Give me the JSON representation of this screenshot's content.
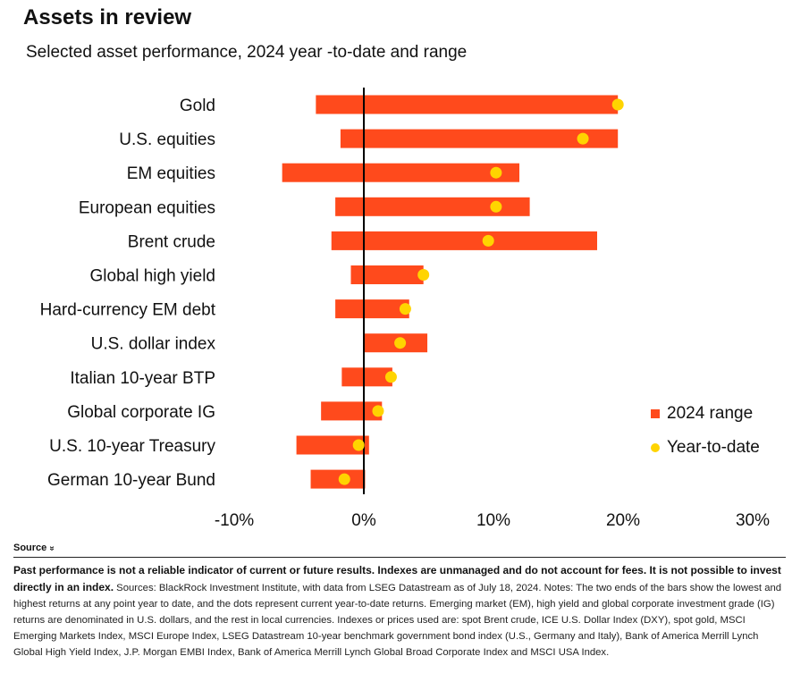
{
  "header": {
    "title": "Assets in review",
    "subtitle": "Selected asset performance, 2024 year  -to-date and range"
  },
  "legend": {
    "range_label": "2024 range",
    "ytd_label": "Year-to-date"
  },
  "colors": {
    "bar": "#ff4a1c",
    "dot": "#ffd400",
    "axis": "#000000"
  },
  "chart_data": {
    "type": "bar",
    "orientation": "horizontal",
    "title": "Assets in review",
    "subtitle": "Selected asset performance, 2024 year  -to-date and range",
    "xlim": [
      -10,
      30
    ],
    "xticks": [
      -10,
      0,
      10,
      20,
      30
    ],
    "xtick_labels": [
      "-10%",
      "0%",
      "10%",
      "20%",
      "30%"
    ],
    "grid": false,
    "legend_position": "right",
    "categories": [
      "Gold",
      "U.S. equities",
      "EM equities",
      "European equities",
      "Brent crude",
      "Global high yield",
      "Hard-currency EM debt",
      "U.S. dollar index",
      "Italian 10-year BTP",
      "Global corporate IG",
      "U.S. 10-year Treasury",
      "German 10-year Bund"
    ],
    "series": [
      {
        "name": "2024 range",
        "type": "range",
        "low": [
          -3.7,
          -1.8,
          -6.3,
          -2.2,
          -2.5,
          -1.0,
          -2.2,
          0.0,
          -1.7,
          -3.3,
          -5.2,
          -4.1
        ],
        "high": [
          19.6,
          19.6,
          12.0,
          12.8,
          18.0,
          4.6,
          3.5,
          4.9,
          2.2,
          1.4,
          0.4,
          0.1
        ]
      },
      {
        "name": "Year-to-date",
        "type": "point",
        "values": [
          19.6,
          16.9,
          10.2,
          10.2,
          9.6,
          4.6,
          3.2,
          2.8,
          2.1,
          1.1,
          -0.4,
          -1.5
        ]
      }
    ]
  },
  "source": {
    "toggle_label": "Source",
    "toggle_icon": "»",
    "bold_text": "Past performance is not a reliable indicator of current or future results. Indexes are unmanaged and do not account for fees. It is not possible to invest directly in an index.",
    "text": " Sources: BlackRock Investment Institute, with data from LSEG Datastream as of July 18, 2024. Notes: The two ends of the bars show the lowest and highest returns at any point year to date, and the dots represent current year-to-date returns. Emerging market (EM), high yield and global corporate investment grade (IG) returns are denominated in U.S. dollars, and the rest in local currencies. Indexes or prices used are: spot Brent crude, ICE U.S. Dollar Index (DXY), spot gold, MSCI Emerging Markets Index, MSCI Europe Index, LSEG Datastream 10-year benchmark government bond index (U.S., Germany and Italy), Bank of America Merrill Lynch Global High Yield Index, J.P. Morgan EMBI Index, Bank of America Merrill Lynch Global Broad Corporate Index and MSCI USA Index."
  }
}
